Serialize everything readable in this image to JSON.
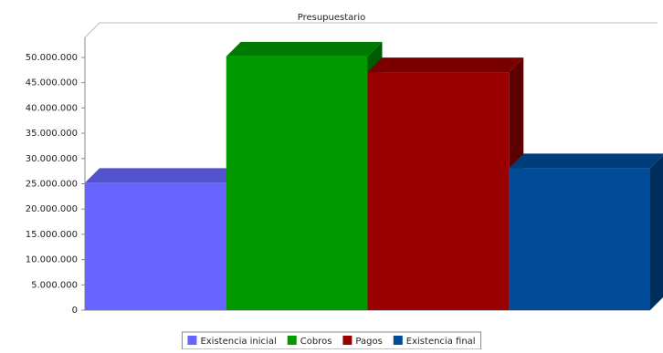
{
  "chart_data": {
    "type": "bar3d",
    "title": "Presupuestario",
    "categories": [
      null
    ],
    "series": [
      {
        "name": "Existencia inicial",
        "color": "#6666ff",
        "values": [
          25200000
        ]
      },
      {
        "name": "Cobros",
        "color": "#009900",
        "values": [
          50200000
        ]
      },
      {
        "name": "Pagos",
        "color": "#990000",
        "values": [
          47100000
        ]
      },
      {
        "name": "Existencia final",
        "color": "#004c99",
        "values": [
          28100000
        ]
      }
    ],
    "ylim": [
      0,
      50000000
    ],
    "yticks": [
      0,
      {
        "value": 5000000,
        "label": "5.000.000"
      },
      {
        "value": 10000000,
        "label": "10.000.000"
      },
      {
        "value": 15000000,
        "label": "15.000.000"
      },
      {
        "value": 20000000,
        "label": "20.000.000"
      },
      {
        "value": 25000000,
        "label": "25.000.000"
      },
      {
        "value": 30000000,
        "label": "30.000.000"
      },
      {
        "value": 35000000,
        "label": "35.000.000"
      },
      {
        "value": 40000000,
        "label": "40.000.000"
      },
      {
        "value": 45000000,
        "label": "45.000.000"
      },
      {
        "value": 50000000,
        "label": "50.000.000"
      }
    ],
    "grid": false,
    "legend": "bottom"
  }
}
